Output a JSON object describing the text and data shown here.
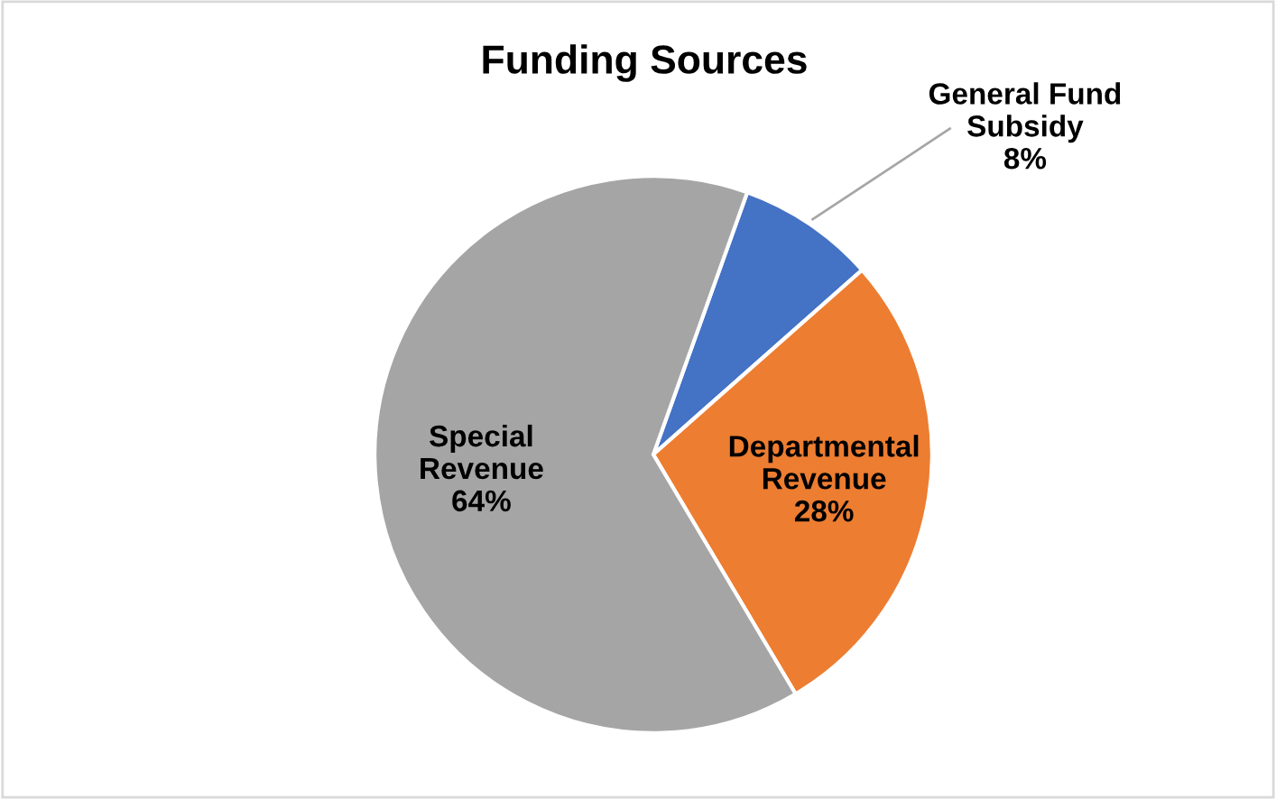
{
  "chart_data": {
    "type": "pie",
    "title": "Funding Sources",
    "categories": [
      "General Fund Subsidy",
      "Departmental Revenue",
      "Special Revenue"
    ],
    "values": [
      8,
      28,
      64
    ],
    "colors": [
      "#4472c4",
      "#ed7d31",
      "#a5a5a5"
    ],
    "value_labels": [
      "8%",
      "28%",
      "64%"
    ]
  }
}
